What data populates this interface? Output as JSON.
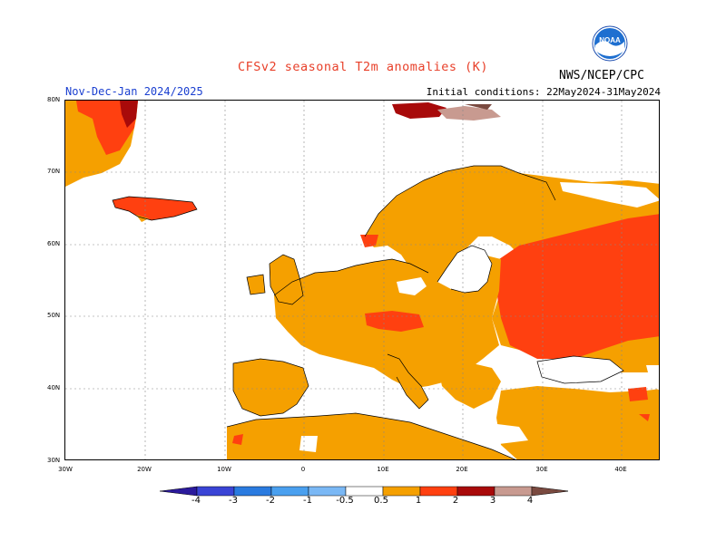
{
  "title": "CFSv2 seasonal T2m anomalies (K)",
  "season": "Nov-Dec-Jan 2024/2025",
  "initial_conditions": "Initial conditions: 22May2024-31May2024",
  "agency": "NWS/NCEP/CPC",
  "logo_text": "NOAA",
  "lat_labels": [
    "80N",
    "70N",
    "60N",
    "50N",
    "40N",
    "30N"
  ],
  "lon_labels": [
    "30W",
    "20W",
    "10W",
    "0",
    "10E",
    "20E",
    "30E",
    "40E"
  ],
  "colorbar": {
    "labels": [
      "-4",
      "-3",
      "-2",
      "-1",
      "-0.5",
      "0.5",
      "1",
      "2",
      "3",
      "4"
    ],
    "colors": [
      "#2b1a9c",
      "#3a44d6",
      "#2a7be0",
      "#4aa0ef",
      "#7ab8f5",
      "#ffffff",
      "#f5a000",
      "#ff4010",
      "#a80a0a",
      "#c89a90",
      "#7a4a40"
    ]
  },
  "colors": {
    "title": "#e8402a",
    "season": "#1a3fd0",
    "land_anomaly_moderate": "#f5a000",
    "land_anomaly_strong": "#ff4010",
    "land_anomaly_very_strong": "#a80a0a"
  }
}
